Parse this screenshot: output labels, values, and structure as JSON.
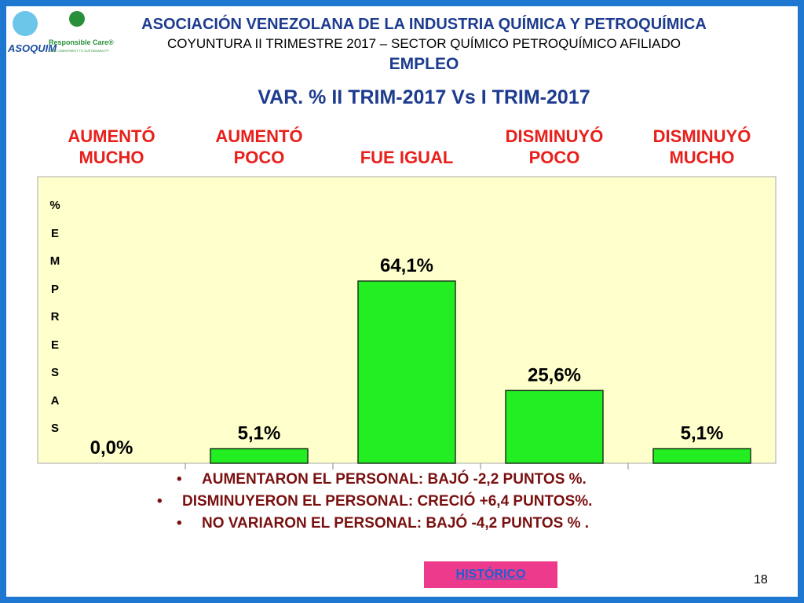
{
  "header": {
    "title": "ASOCIACIÓN VENEZOLANA DE LA INDUSTRIA QUÍMICA Y PETROQUÍMICA",
    "subtitle": "COYUNTURA II TRIMESTRE 2017 – SECTOR QUÍMICO PETROQUÍMICO AFILIADO",
    "section": "EMPLEO",
    "logo_left": "ASOQUIM",
    "logo_right": "Responsible Care®",
    "logo_right_tagline": "OUR COMMITMENT TO SUSTAINABILITY"
  },
  "chart_data": {
    "type": "bar",
    "title": "VAR. % II TRIM-2017 Vs I TRIM-2017",
    "y_label": "% EMPRESAS",
    "categories": [
      "AUMENTÓ MUCHO",
      "AUMENTÓ POCO",
      "FUE IGUAL",
      "DISMINUYÓ POCO",
      "DISMINUYÓ MUCHO"
    ],
    "values": [
      0,
      5.1,
      64.1,
      25.6,
      5.1
    ],
    "value_labels": [
      "0,0%",
      "5,1%",
      "64,1%",
      "25,6%",
      "5,1%"
    ],
    "color": "#22ee22",
    "ylim": [
      0,
      100
    ]
  },
  "bullets": [
    "AUMENTARON EL PERSONAL: BAJÓ -2,2 PUNTOS %.",
    "DISMINUYERON EL PERSONAL: CRECIÓ +6,4 PUNTOS%.",
    "NO VARIARON EL PERSONAL: BAJÓ -4,2 PUNTOS % ."
  ],
  "button": "HISTÓRICO",
  "page_number": "18"
}
